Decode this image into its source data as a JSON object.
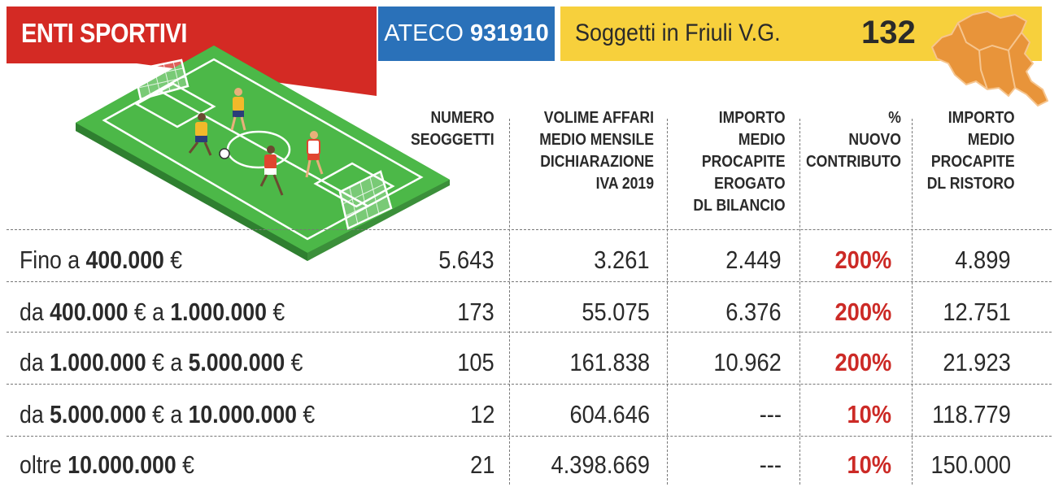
{
  "header": {
    "title": "ENTI SPORTIVI",
    "ateco_label": "ATECO",
    "ateco_code": "931910",
    "soggetti_label": "Soggetti in Friuli V.G.",
    "soggetti_count": "132"
  },
  "colors": {
    "title_red": "#d42a24",
    "ateco_blue": "#2a71b9",
    "soggetti_yellow": "#f7d03c",
    "map_orange": "#e8943a",
    "percent_red": "#cc2a26",
    "pitch_green": "#4cb848"
  },
  "columns": [
    [
      "NUMERO",
      "SEOGGETTI"
    ],
    [
      "VOLIME AFFARI",
      "MEDIO MENSILE",
      "DICHIARAZIONE",
      "IVA 2019"
    ],
    [
      "IMPORTO",
      "MEDIO",
      "PROCAPITE",
      "EROGATO",
      "DL BILANCIO"
    ],
    [
      "%",
      "NUOVO",
      "CONTRIBUTO"
    ],
    [
      "IMPORTO",
      "MEDIO",
      "PROCAPITE",
      "DL RISTORO"
    ]
  ],
  "rows": [
    {
      "pre": "Fino a ",
      "a": "400.000",
      "mid": " €",
      "b": "",
      "post": "",
      "numero": "5.643",
      "volume": "3.261",
      "bilancio": "2.449",
      "percent": "200%",
      "ristoro": "4.899"
    },
    {
      "pre": "da ",
      "a": "400.000",
      "mid": " € a ",
      "b": "1.000.000",
      "post": " €",
      "numero": "173",
      "volume": "55.075",
      "bilancio": "6.376",
      "percent": "200%",
      "ristoro": "12.751"
    },
    {
      "pre": "da ",
      "a": "1.000.000",
      "mid": " € a ",
      "b": "5.000.000",
      "post": " €",
      "numero": "105",
      "volume": "161.838",
      "bilancio": "10.962",
      "percent": "200%",
      "ristoro": "21.923"
    },
    {
      "pre": "da ",
      "a": "5.000.000",
      "mid": " € a ",
      "b": "10.000.000",
      "post": " €",
      "numero": "12",
      "volume": "604.646",
      "bilancio": "---",
      "percent": "10%",
      "ristoro": "118.779"
    },
    {
      "pre": "oltre ",
      "a": "10.000.000",
      "mid": " €",
      "b": "",
      "post": "",
      "numero": "21",
      "volume": "4.398.669",
      "bilancio": "---",
      "percent": "10%",
      "ristoro": "150.000"
    }
  ]
}
